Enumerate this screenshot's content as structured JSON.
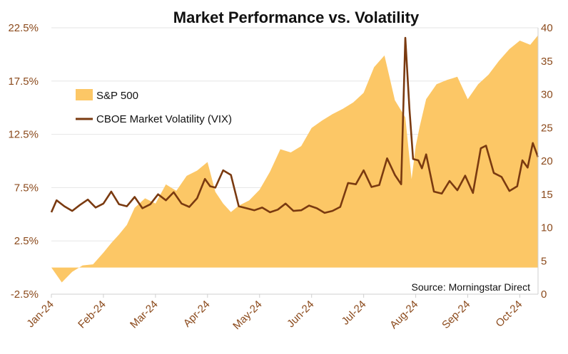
{
  "chart_data": {
    "type": "area+line",
    "title": "Market Performance vs. Volatility",
    "source": "Source: Morningstar Direct",
    "x_ticks": [
      "Jan-24",
      "Feb-24",
      "Mar-24",
      "Apr-24",
      "May-24",
      "Jun-24",
      "Jul-24",
      "Aug-24",
      "Sep-24",
      "Oct-24"
    ],
    "y_left": {
      "ticks": [
        "-2.5%",
        "2.5%",
        "7.5%",
        "12.5%",
        "17.5%",
        "22.5%"
      ],
      "range": [
        -2.5,
        22.5
      ],
      "format": "percent"
    },
    "y_right": {
      "ticks": [
        "0",
        "5",
        "10",
        "15",
        "20",
        "25",
        "30",
        "35",
        "40"
      ],
      "range": [
        0,
        40
      ]
    },
    "colors": {
      "area": "#fcc766",
      "line": "#7a3a10",
      "axis_text": "#8b4a1c",
      "grid": "#e6e6e6"
    },
    "series": [
      {
        "name": "S&P 500",
        "type": "area",
        "axis": "left",
        "x": [
          0,
          0.2,
          0.4,
          0.6,
          0.8,
          1,
          1.15,
          1.3,
          1.45,
          1.6,
          1.8,
          2,
          2.2,
          2.4,
          2.6,
          2.8,
          3,
          3.15,
          3.3,
          3.45,
          3.6,
          3.8,
          4,
          4.2,
          4.4,
          4.6,
          4.8,
          5,
          5.2,
          5.4,
          5.6,
          5.8,
          6,
          6.2,
          6.4,
          6.6,
          6.8,
          6.92,
          7,
          7.08,
          7.2,
          7.4,
          7.6,
          7.8,
          8,
          8.2,
          8.4,
          8.6,
          8.8,
          9,
          9.2,
          9.35
        ],
        "values": [
          0,
          -1.4,
          -0.4,
          0.2,
          0.3,
          1.4,
          2.3,
          3.1,
          4.0,
          5.6,
          6.5,
          6.0,
          7.8,
          7.2,
          8.6,
          9.1,
          9.9,
          7.1,
          6.0,
          5.2,
          5.8,
          6.3,
          7.3,
          9.0,
          11.1,
          10.8,
          11.4,
          13.1,
          13.8,
          14.4,
          14.9,
          15.5,
          16.4,
          18.8,
          19.9,
          15.7,
          14.1,
          8.3,
          11.4,
          13.3,
          15.8,
          17.2,
          17.6,
          17.9,
          15.8,
          17.2,
          18.1,
          19.4,
          20.5,
          21.3,
          20.9,
          21.8
        ]
      },
      {
        "name": "CBOE Market Volatility (VIX)",
        "type": "line",
        "axis": "right",
        "x": [
          0,
          0.1,
          0.25,
          0.4,
          0.55,
          0.7,
          0.85,
          1,
          1.15,
          1.3,
          1.45,
          1.6,
          1.75,
          1.9,
          2.05,
          2.2,
          2.35,
          2.5,
          2.65,
          2.8,
          2.95,
          3.05,
          3.15,
          3.3,
          3.45,
          3.6,
          3.75,
          3.9,
          4.05,
          4.2,
          4.35,
          4.5,
          4.65,
          4.8,
          4.95,
          5.1,
          5.25,
          5.4,
          5.55,
          5.7,
          5.85,
          6,
          6.15,
          6.3,
          6.45,
          6.6,
          6.72,
          6.8,
          6.88,
          6.95,
          7.05,
          7.12,
          7.2,
          7.35,
          7.5,
          7.65,
          7.8,
          7.95,
          8.1,
          8.25,
          8.35,
          8.5,
          8.65,
          8.8,
          8.95,
          9.05,
          9.15,
          9.25,
          9.35
        ],
        "values": [
          12.3,
          14.1,
          13.2,
          12.5,
          13.4,
          14.2,
          13.0,
          13.6,
          15.4,
          13.5,
          13.2,
          14.6,
          12.9,
          13.5,
          15.0,
          14.1,
          15.3,
          13.6,
          13.1,
          14.4,
          17.3,
          16.2,
          16.0,
          18.6,
          17.9,
          13.2,
          12.9,
          12.6,
          13.0,
          12.3,
          12.7,
          13.6,
          12.5,
          12.6,
          13.3,
          12.9,
          12.2,
          12.5,
          13.1,
          16.7,
          16.5,
          18.6,
          16.1,
          16.4,
          20.4,
          17.9,
          16.5,
          38.5,
          27.8,
          20.3,
          20.1,
          18.9,
          21.0,
          15.4,
          15.1,
          17.0,
          15.6,
          17.8,
          15.2,
          21.9,
          22.3,
          18.2,
          17.6,
          15.5,
          16.2,
          20.1,
          19.0,
          22.7,
          20.6
        ]
      }
    ]
  }
}
